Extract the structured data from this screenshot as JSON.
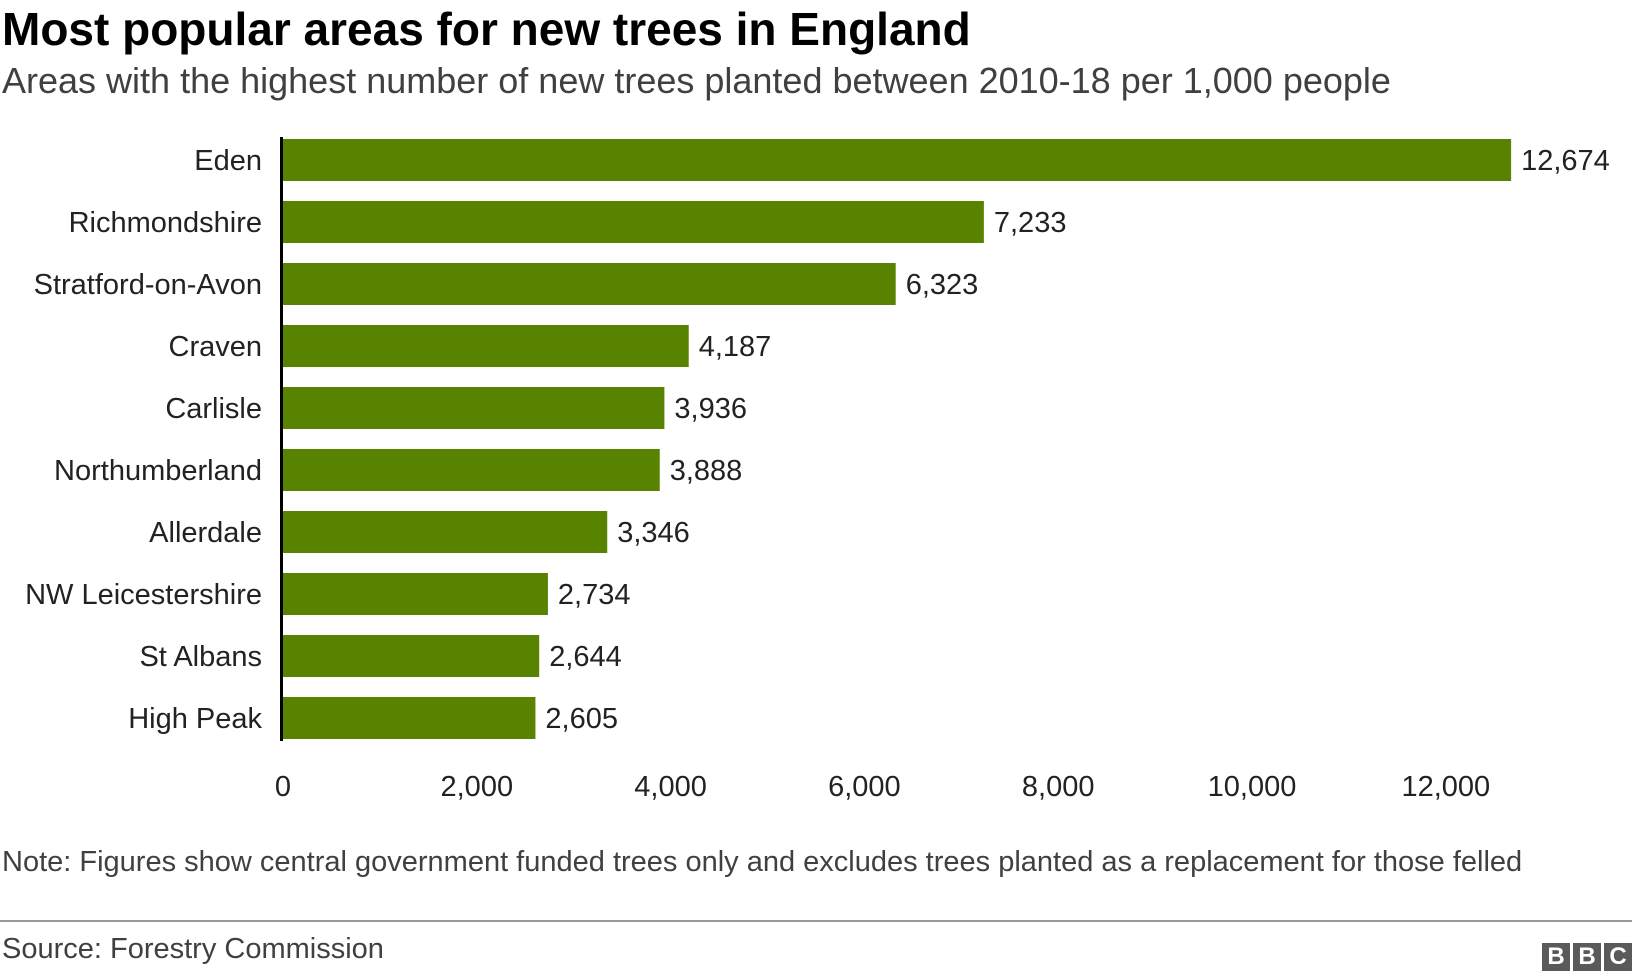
{
  "header": {
    "title": "Most popular areas for new trees in England",
    "subtitle": "Areas with the highest number of new trees planted between 2010-18 per 1,000 people"
  },
  "chart_data": {
    "type": "bar",
    "orientation": "horizontal",
    "title": "Most popular areas for new trees in England",
    "subtitle": "Areas with the highest number of new trees planted between 2010-18 per 1,000 people",
    "categories": [
      "Eden",
      "Richmondshire",
      "Stratford-on-Avon",
      "Craven",
      "Carlisle",
      "Northumberland",
      "Allerdale",
      "NW Leicestershire",
      "St Albans",
      "High Peak"
    ],
    "values": [
      12674,
      7233,
      6323,
      4187,
      3936,
      3888,
      3346,
      2734,
      2644,
      2605
    ],
    "value_labels": [
      "12,674",
      "7,233",
      "6,323",
      "4,187",
      "3,936",
      "3,888",
      "3,346",
      "2,734",
      "2,644",
      "2,605"
    ],
    "xlim": [
      0,
      13500
    ],
    "xticks": [
      0,
      2000,
      4000,
      6000,
      8000,
      10000,
      12000
    ],
    "xtick_labels": [
      "0",
      "2,000",
      "4,000",
      "6,000",
      "8,000",
      "10,000",
      "12,000"
    ],
    "xlabel": "",
    "ylabel": "",
    "grid": false,
    "bar_color": "#588300"
  },
  "footer": {
    "note": "Note: Figures show central government funded trees only and excludes trees planted as a replacement for those felled",
    "source": "Source: Forestry Commission",
    "logo_letters": [
      "B",
      "B",
      "C"
    ]
  }
}
